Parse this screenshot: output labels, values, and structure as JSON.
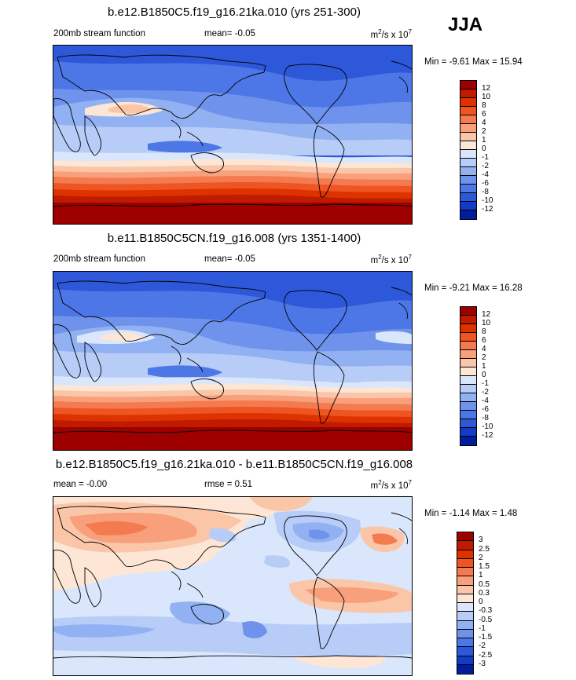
{
  "season": "JJA",
  "panels": [
    {
      "title": "b.e12.B1850C5.f19_g16.21ka.010 (yrs 251-300)",
      "variable_label": "200mb stream function",
      "mean_label": "mean=",
      "mean_value": "-0.05",
      "rmse_label": "",
      "rmse_value": "",
      "units_base": "m",
      "units_exp": "2",
      "units_mid": "/s x 10",
      "units_exp2": "7",
      "minmax": "Min =  -9.61 Max =  15.94",
      "colorbar": {
        "labels": [
          "12",
          "10",
          "8",
          "6",
          "4",
          "2",
          "1",
          "0",
          "-1",
          "-2",
          "-4",
          "-6",
          "-8",
          "-10",
          "-12"
        ],
        "colors": [
          "#9e0000",
          "#c01a00",
          "#dd3300",
          "#ee5522",
          "#f47a50",
          "#f8a07c",
          "#fbc6a8",
          "#fde6d6",
          "#d9e6fb",
          "#b7cdf7",
          "#92b1f2",
          "#6f93ec",
          "#4d76e6",
          "#2d58d9",
          "#123cc6",
          "#001e9c"
        ]
      }
    },
    {
      "title": "b.e11.B1850C5CN.f19_g16.008 (yrs 1351-1400)",
      "variable_label": "200mb stream function",
      "mean_label": "mean=",
      "mean_value": "-0.05",
      "rmse_label": "",
      "rmse_value": "",
      "units_base": "m",
      "units_exp": "2",
      "units_mid": "/s x 10",
      "units_exp2": "7",
      "minmax": "Min =  -9.21 Max =  16.28",
      "colorbar": {
        "labels": [
          "12",
          "10",
          "8",
          "6",
          "4",
          "2",
          "1",
          "0",
          "-1",
          "-2",
          "-4",
          "-6",
          "-8",
          "-10",
          "-12"
        ],
        "colors": [
          "#9e0000",
          "#c01a00",
          "#dd3300",
          "#ee5522",
          "#f47a50",
          "#f8a07c",
          "#fbc6a8",
          "#fde6d6",
          "#d9e6fb",
          "#b7cdf7",
          "#92b1f2",
          "#6f93ec",
          "#4d76e6",
          "#2d58d9",
          "#123cc6",
          "#001e9c"
        ]
      }
    },
    {
      "title": "b.e12.B1850C5.f19_g16.21ka.010 - b.e11.B1850C5CN.f19_g16.008",
      "variable_label": "",
      "mean_label": "mean =",
      "mean_value": "-0.00",
      "rmse_label": "rmse =",
      "rmse_value": "0.51",
      "units_base": "m",
      "units_exp": "2",
      "units_mid": "/s x 10",
      "units_exp2": "7",
      "minmax": "Min =  -1.14 Max =   1.48",
      "colorbar": {
        "labels": [
          "3",
          "2.5",
          "2",
          "1.5",
          "1",
          "0.5",
          "0.3",
          "0",
          "-0.3",
          "-0.5",
          "-1",
          "-1.5",
          "-2",
          "-2.5",
          "-3"
        ],
        "colors": [
          "#9e0000",
          "#c01a00",
          "#dd3300",
          "#ee5522",
          "#f47a50",
          "#f8a07c",
          "#fbc6a8",
          "#fde6d6",
          "#d9e6fb",
          "#b7cdf7",
          "#92b1f2",
          "#6f93ec",
          "#4d76e6",
          "#2d58d9",
          "#123cc6",
          "#001e9c"
        ]
      }
    }
  ]
}
